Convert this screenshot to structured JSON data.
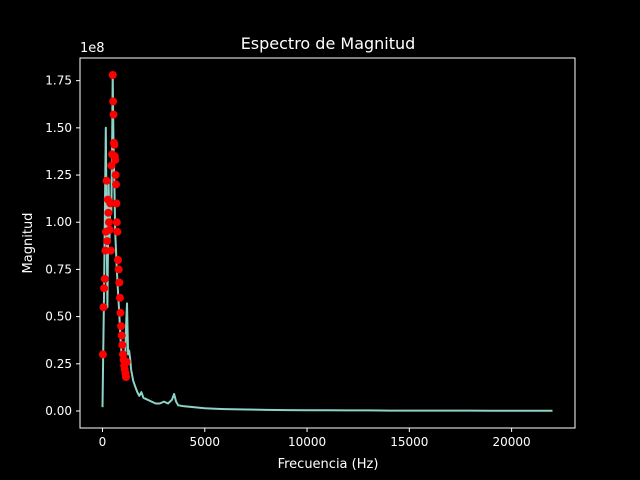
{
  "chart_data": {
    "type": "line",
    "title": "Espectro de Magnitud",
    "xlabel": "Frecuencia (Hz)",
    "ylabel": "Magnitud",
    "y_scale_label": "1e8",
    "xlim": [
      -1100,
      23100
    ],
    "ylim": [
      -0.09,
      1.87
    ],
    "x_ticks": [
      0,
      5000,
      10000,
      15000,
      20000
    ],
    "x_tick_labels": [
      "0",
      "5000",
      "10000",
      "15000",
      "20000"
    ],
    "y_ticks": [
      0.0,
      0.25,
      0.5,
      0.75,
      1.0,
      1.25,
      1.5,
      1.75
    ],
    "y_tick_labels": [
      "0.00",
      "0.25",
      "0.50",
      "0.75",
      "1.00",
      "1.25",
      "1.50",
      "1.75"
    ],
    "grid": false,
    "legend": "none",
    "colors": {
      "spectrum": "#8dd3c7",
      "peaks": "#ff0000",
      "background": "#000000",
      "axes": "#ffffff"
    },
    "series": [
      {
        "kind": "line",
        "x": [
          0,
          80,
          160,
          240,
          300,
          340,
          380,
          430,
          470,
          500,
          540,
          580,
          620,
          660,
          700,
          750,
          800,
          850,
          900,
          950,
          1000,
          1050,
          1100,
          1150,
          1200,
          1250,
          1300,
          1350,
          1400,
          1500,
          1600,
          1700,
          1800,
          1900,
          2000,
          2200,
          2400,
          2600,
          2800,
          3000,
          3200,
          3400,
          3500,
          3600,
          3700,
          4000,
          4500,
          5000,
          5500,
          6000,
          7000,
          8000,
          9000,
          10000,
          11000,
          12000,
          13000,
          14000,
          15000,
          16000,
          17000,
          18000,
          19000,
          20000,
          21000,
          22000
        ],
        "y": [
          0.02,
          0.65,
          1.5,
          0.55,
          1.22,
          0.9,
          1.12,
          1.05,
          1.38,
          1.78,
          1.42,
          1.2,
          0.95,
          0.85,
          0.75,
          0.65,
          0.55,
          0.45,
          0.35,
          0.28,
          0.25,
          0.22,
          0.2,
          0.44,
          0.57,
          0.3,
          0.32,
          0.28,
          0.22,
          0.16,
          0.13,
          0.1,
          0.08,
          0.1,
          0.07,
          0.06,
          0.05,
          0.04,
          0.04,
          0.05,
          0.04,
          0.06,
          0.09,
          0.05,
          0.03,
          0.025,
          0.02,
          0.015,
          0.012,
          0.01,
          0.008,
          0.006,
          0.005,
          0.004,
          0.004,
          0.003,
          0.003,
          0.002,
          0.002,
          0.002,
          0.002,
          0.002,
          0.001,
          0.001,
          0.001,
          0.001
        ]
      },
      {
        "kind": "scatter",
        "x": [
          20,
          50,
          80,
          110,
          140,
          170,
          200,
          230,
          260,
          290,
          320,
          350,
          380,
          410,
          440,
          470,
          500,
          520,
          540,
          560,
          580,
          600,
          620,
          640,
          660,
          680,
          700,
          730,
          760,
          790,
          820,
          850,
          880,
          910,
          940,
          970,
          1000,
          1030,
          1060,
          1090,
          1120,
          1150,
          1180
        ],
        "y": [
          0.3,
          0.55,
          0.65,
          0.7,
          0.85,
          0.95,
          1.22,
          0.9,
          1.12,
          1.05,
          1.0,
          0.96,
          1.1,
          0.85,
          1.3,
          1.36,
          1.78,
          1.64,
          1.57,
          1.42,
          1.41,
          1.35,
          1.33,
          1.25,
          1.2,
          1.1,
          1.0,
          0.95,
          0.8,
          0.75,
          0.68,
          0.6,
          0.52,
          0.45,
          0.4,
          0.35,
          0.3,
          0.27,
          0.24,
          0.22,
          0.2,
          0.18,
          0.26
        ]
      }
    ]
  }
}
